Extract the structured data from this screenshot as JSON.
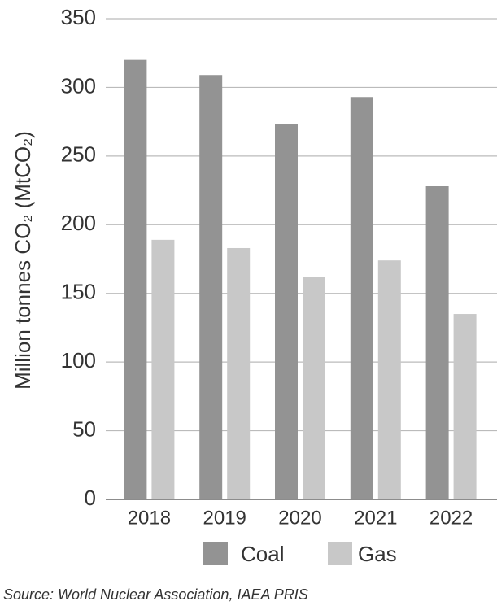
{
  "chart_data": {
    "type": "bar",
    "y_label": "Million tonnes CO₂ (MtCO₂)",
    "source": "Source: World Nuclear Association, IAEA PRIS",
    "categories": [
      "2018",
      "2019",
      "2020",
      "2021",
      "2022"
    ],
    "series": [
      {
        "name": "Coal",
        "color": "#939393",
        "values": [
          320,
          309,
          273,
          293,
          228
        ]
      },
      {
        "name": "Gas",
        "color": "#c8c8c8",
        "values": [
          189,
          183,
          162,
          174,
          135
        ]
      }
    ],
    "ylim": [
      0,
      350
    ],
    "yticks": [
      0,
      50,
      100,
      150,
      200,
      250,
      300,
      350
    ],
    "grid": true
  }
}
